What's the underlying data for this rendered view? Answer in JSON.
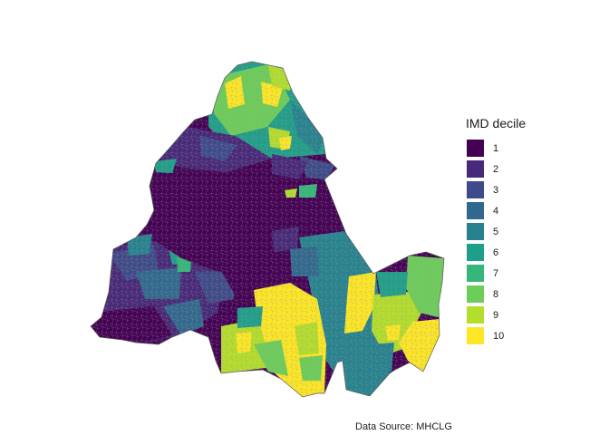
{
  "legend": {
    "title": "IMD decile",
    "items": [
      {
        "label": "1",
        "color": "#440154"
      },
      {
        "label": "2",
        "color": "#482878"
      },
      {
        "label": "3",
        "color": "#3E4A89"
      },
      {
        "label": "4",
        "color": "#31688E"
      },
      {
        "label": "5",
        "color": "#26828E"
      },
      {
        "label": "6",
        "color": "#1F9E89"
      },
      {
        "label": "7",
        "color": "#35B779"
      },
      {
        "label": "8",
        "color": "#6DCD59"
      },
      {
        "label": "9",
        "color": "#B4DE2C"
      },
      {
        "label": "10",
        "color": "#FDE725"
      }
    ]
  },
  "caption": "Data Source: MHCLG"
}
